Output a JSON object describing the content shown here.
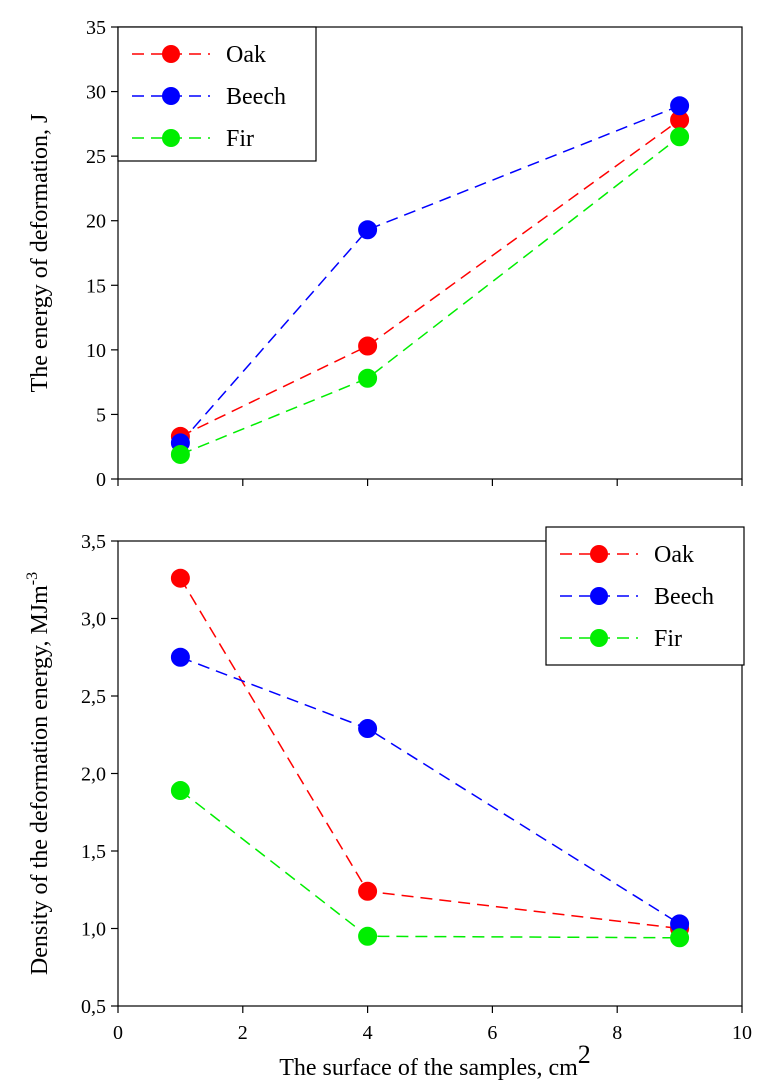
{
  "chart_data": [
    {
      "type": "line",
      "ylabel": "The energy of deformation, J",
      "xlim": [
        0,
        10
      ],
      "ylim": [
        0,
        35
      ],
      "yticks": [
        0,
        5,
        10,
        15,
        20,
        25,
        30,
        35
      ],
      "ytick_labels": [
        "0",
        "5",
        "10",
        "15",
        "20",
        "25",
        "30",
        "35"
      ],
      "x": [
        1,
        4,
        9
      ],
      "legend_position": "top-left",
      "grid": false,
      "series": [
        {
          "name": "Oak",
          "color": "#ff0000",
          "values": [
            3.3,
            10.3,
            27.8
          ]
        },
        {
          "name": "Beech",
          "color": "#0000ff",
          "values": [
            2.8,
            19.3,
            28.9
          ]
        },
        {
          "name": "Fir",
          "color": "#00ee00",
          "values": [
            1.9,
            7.8,
            26.5
          ]
        }
      ]
    },
    {
      "type": "line",
      "xlabel": "The surface of the samples, cm",
      "xlabel_superscript": "2",
      "ylabel": "Density of the deformation energy, MJm",
      "ylabel_superscript": "-3",
      "xlim": [
        0,
        10
      ],
      "ylim": [
        0.5,
        3.5
      ],
      "xticks": [
        0,
        2,
        4,
        6,
        8,
        10
      ],
      "xtick_labels": [
        "0",
        "2",
        "4",
        "6",
        "8",
        "10"
      ],
      "yticks": [
        0.5,
        1.0,
        1.5,
        2.0,
        2.5,
        3.0,
        3.5
      ],
      "ytick_labels": [
        "0,5",
        "1,0",
        "1,5",
        "2,0",
        "2,5",
        "3,0",
        "3,5"
      ],
      "x": [
        1,
        4,
        9
      ],
      "legend_position": "top-right",
      "grid": false,
      "series": [
        {
          "name": "Oak",
          "color": "#ff0000",
          "values": [
            3.26,
            1.24,
            1.0
          ]
        },
        {
          "name": "Beech",
          "color": "#0000ff",
          "values": [
            2.75,
            2.29,
            1.03
          ]
        },
        {
          "name": "Fir",
          "color": "#00ee00",
          "values": [
            1.89,
            0.95,
            0.94
          ]
        }
      ]
    }
  ]
}
